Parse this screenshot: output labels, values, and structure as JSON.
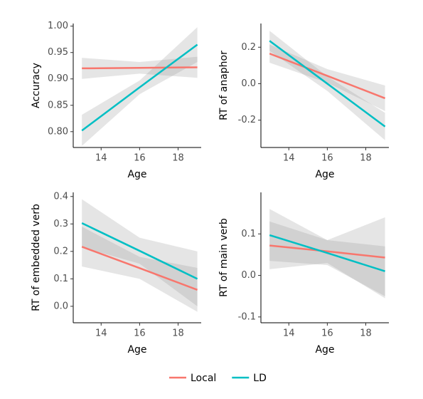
{
  "chart_data": [
    {
      "type": "line",
      "y_label": "Accuracy",
      "x_label": "Age",
      "x": [
        13,
        16,
        19
      ],
      "xlim": [
        12.55,
        19.2
      ],
      "xticks": [
        14,
        16,
        18
      ],
      "ylim": [
        0.77,
        1.005
      ],
      "yticks": [
        {
          "value": 0.8,
          "label": "0.80"
        },
        {
          "value": 0.85,
          "label": "0.85"
        },
        {
          "value": 0.9,
          "label": "0.90"
        },
        {
          "value": 0.95,
          "label": "0.95"
        },
        {
          "value": 1.0,
          "label": "1.00"
        }
      ],
      "series": [
        {
          "name": "Local",
          "color": "#F8766D",
          "values": [
            0.92,
            0.921,
            0.922
          ],
          "lower": [
            0.9,
            0.91,
            0.902
          ],
          "upper": [
            0.94,
            0.932,
            0.942
          ]
        },
        {
          "name": "LD",
          "color": "#00BFC4",
          "values": [
            0.802,
            0.884,
            0.965
          ],
          "lower": [
            0.773,
            0.871,
            0.932
          ],
          "upper": [
            0.832,
            0.897,
            0.998
          ]
        }
      ]
    },
    {
      "type": "line",
      "y_label": "RT of anaphor",
      "x_label": "Age",
      "x": [
        13,
        16,
        19
      ],
      "xlim": [
        12.55,
        19.2
      ],
      "xticks": [
        14,
        16,
        18
      ],
      "ylim": [
        -0.35,
        0.33
      ],
      "yticks": [
        -0.2,
        {
          "value": 0.0,
          "label": "0.0"
        },
        0.2
      ],
      "series": [
        {
          "color": "#F8766D",
          "values": [
            0.165,
            0.043,
            -0.08
          ],
          "lower": [
            0.115,
            0.005,
            -0.15
          ],
          "upper": [
            0.215,
            0.08,
            -0.01
          ]
        },
        {
          "color": "#00BFC4",
          "values": [
            0.235,
            0.0,
            -0.235
          ],
          "lower": [
            0.18,
            -0.04,
            -0.31
          ],
          "upper": [
            0.29,
            0.04,
            -0.16
          ]
        }
      ]
    },
    {
      "type": "line",
      "y_label": "RT of embedded verb",
      "x_label": "Age",
      "x": [
        13,
        16,
        19
      ],
      "xlim": [
        12.55,
        19.2
      ],
      "xticks": [
        14,
        16,
        18
      ],
      "ylim": [
        -0.06,
        0.415
      ],
      "yticks": [
        {
          "value": 0.0,
          "label": "0.0"
        },
        0.1,
        0.2,
        0.3,
        0.4
      ],
      "series": [
        {
          "color": "#F8766D",
          "values": [
            0.217,
            0.139,
            0.06
          ],
          "lower": [
            0.145,
            0.1,
            -0.02
          ],
          "upper": [
            0.29,
            0.18,
            0.14
          ]
        },
        {
          "color": "#00BFC4",
          "values": [
            0.303,
            0.202,
            0.1
          ],
          "lower": [
            0.215,
            0.155,
            0.0
          ],
          "upper": [
            0.39,
            0.25,
            0.2
          ]
        }
      ]
    },
    {
      "type": "line",
      "y_label": "RT of main verb",
      "x_label": "Age",
      "x": [
        13,
        16,
        19
      ],
      "xlim": [
        12.55,
        19.2
      ],
      "xticks": [
        14,
        16,
        18
      ],
      "ylim": [
        -0.114,
        0.2
      ],
      "yticks": [
        -0.1,
        {
          "value": 0.0,
          "label": "0.0"
        },
        0.1
      ],
      "series": [
        {
          "color": "#F8766D",
          "values": [
            0.072,
            0.058,
            0.043
          ],
          "lower": [
            0.015,
            0.03,
            -0.055
          ],
          "upper": [
            0.13,
            0.085,
            0.14
          ]
        },
        {
          "color": "#00BFC4",
          "values": [
            0.097,
            0.054,
            0.01
          ],
          "lower": [
            0.035,
            0.025,
            -0.05
          ],
          "upper": [
            0.16,
            0.085,
            0.07
          ]
        }
      ]
    }
  ]
}
